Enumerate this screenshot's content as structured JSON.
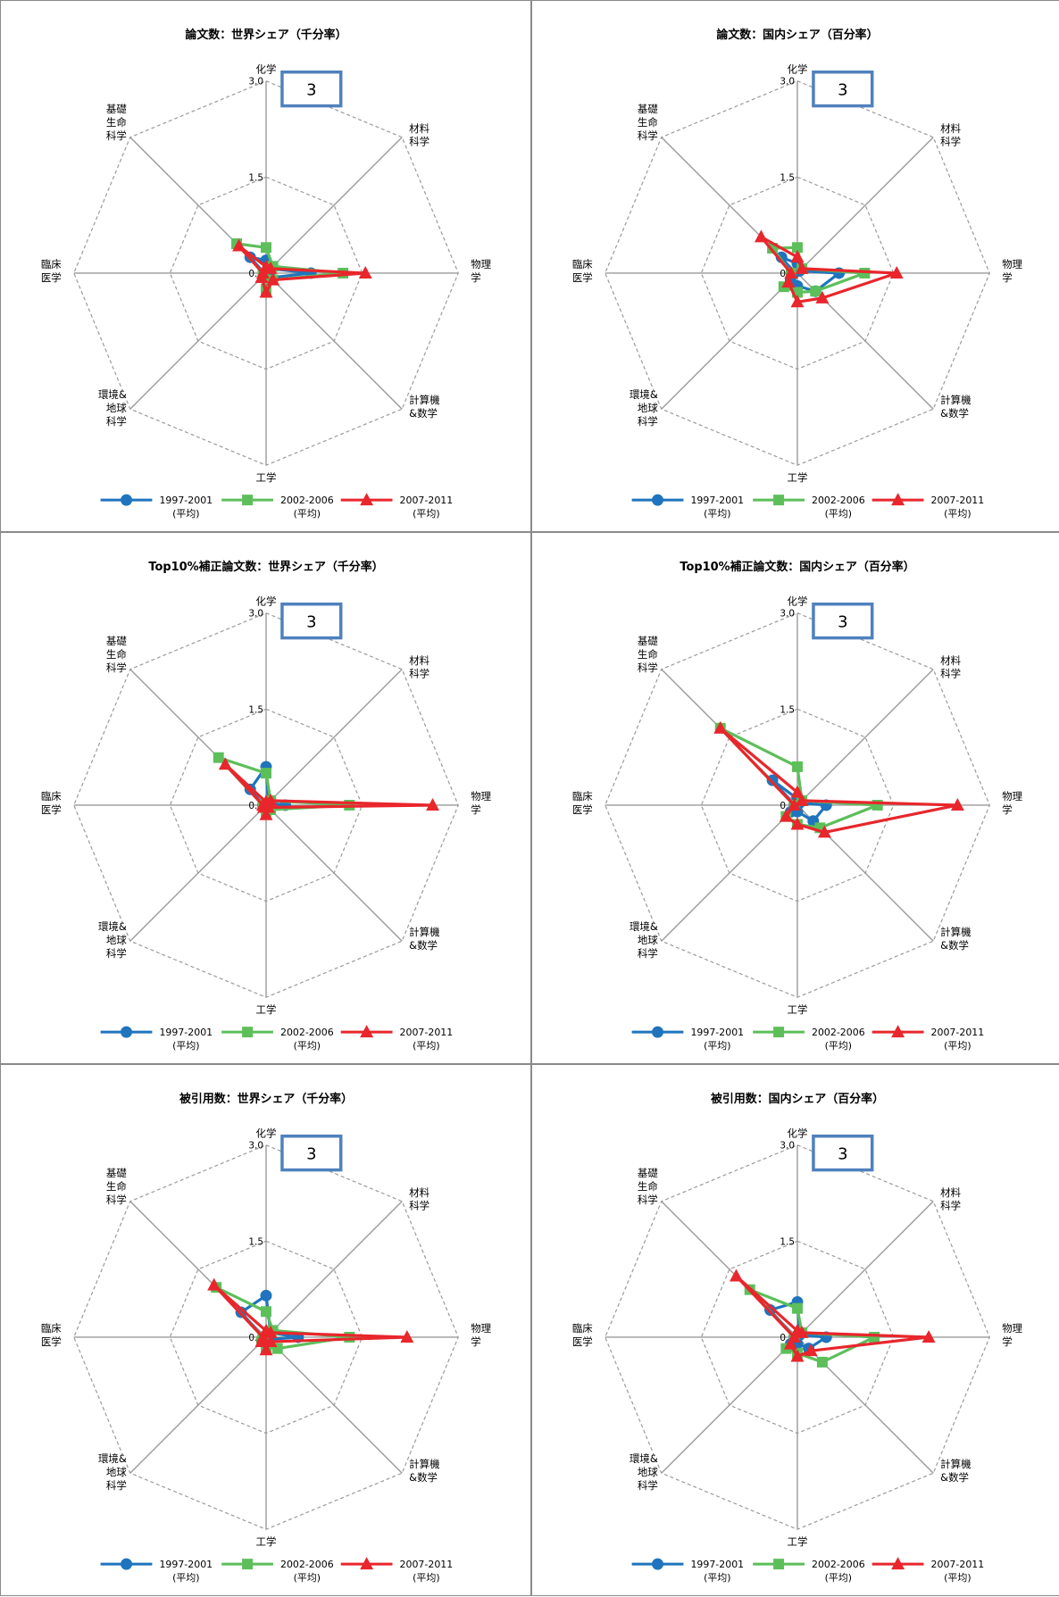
{
  "chart_data": [
    {
      "type": "radar",
      "title": "論文数：世界シェア（千分率）",
      "box_label": "3",
      "axes": [
        "化学",
        "材料\n科学",
        "物理\n学",
        "計算機\n&数学",
        "工学",
        "環境&\n地球\n科学",
        "臨床\n医学",
        "基礎\n生命\n科学"
      ],
      "rlim": [
        0,
        3
      ],
      "ticks": [
        "3.0",
        "1.5",
        "0.0"
      ],
      "series": [
        {
          "name": "1997-2001\n(平均)",
          "color": "#1f74bd",
          "marker": "circle",
          "values": [
            0.2,
            0.1,
            0.7,
            0.1,
            0.05,
            0.03,
            0.03,
            0.35
          ]
        },
        {
          "name": "2002-2006\n(平均)",
          "color": "#5cbf5a",
          "marker": "square",
          "values": [
            0.4,
            0.15,
            1.2,
            0.15,
            0.25,
            0.05,
            0.05,
            0.65
          ]
        },
        {
          "name": "2007-2011\n(平均)",
          "color": "#e8262c",
          "marker": "triangle",
          "values": [
            0.1,
            0.1,
            1.55,
            0.15,
            0.3,
            0.1,
            0.05,
            0.6
          ]
        }
      ]
    },
    {
      "type": "radar",
      "title": "論文数：国内シェア（百分率）",
      "box_label": "3",
      "axes": [
        "化学",
        "材料\n科学",
        "物理\n学",
        "計算機\n&数学",
        "工学",
        "環境&\n地球\n科学",
        "臨床\n医学",
        "基礎\n生命\n科学"
      ],
      "rlim": [
        0,
        3
      ],
      "ticks": [
        "3.0",
        "1.5",
        "0.0"
      ],
      "series": [
        {
          "name": "1997-2001\n(平均)",
          "color": "#1f74bd",
          "marker": "circle",
          "values": [
            0.15,
            0.05,
            0.65,
            0.4,
            0.2,
            0.15,
            0.05,
            0.35
          ]
        },
        {
          "name": "2002-2006\n(平均)",
          "color": "#5cbf5a",
          "marker": "square",
          "values": [
            0.4,
            0.1,
            1.05,
            0.4,
            0.3,
            0.3,
            0.1,
            0.55
          ]
        },
        {
          "name": "2007-2011\n(平均)",
          "color": "#e8262c",
          "marker": "triangle",
          "values": [
            0.25,
            0.1,
            1.55,
            0.55,
            0.45,
            0.2,
            0.1,
            0.8
          ]
        }
      ]
    },
    {
      "type": "radar",
      "title": "Top10%補正論文数：世界シェア（千分率）",
      "box_label": "3",
      "axes": [
        "化学",
        "材料\n科学",
        "物理\n学",
        "計算機\n&数学",
        "工学",
        "環境&\n地球\n科学",
        "臨床\n医学",
        "基礎\n生命\n科学"
      ],
      "rlim": [
        0,
        3
      ],
      "ticks": [
        "3.0",
        "1.5",
        "0.0"
      ],
      "series": [
        {
          "name": "1997-2001\n(平均)",
          "color": "#1f74bd",
          "marker": "circle",
          "values": [
            0.6,
            0.05,
            0.3,
            0.05,
            0.05,
            0.05,
            0.05,
            0.35
          ]
        },
        {
          "name": "2002-2006\n(平均)",
          "color": "#5cbf5a",
          "marker": "square",
          "values": [
            0.5,
            0.1,
            1.3,
            0.1,
            0.1,
            0.05,
            0.05,
            1.05
          ]
        },
        {
          "name": "2007-2011\n(平均)",
          "color": "#e8262c",
          "marker": "triangle",
          "values": [
            0.05,
            0.1,
            2.6,
            0.05,
            0.15,
            0.05,
            0.05,
            0.9
          ]
        }
      ]
    },
    {
      "type": "radar",
      "title": "Top10%補正論文数：国内シェア（百分率）",
      "box_label": "3",
      "axes": [
        "化学",
        "材料\n科学",
        "物理\n学",
        "計算機\n&数学",
        "工学",
        "環境&\n地球\n科学",
        "臨床\n医学",
        "基礎\n生命\n科学"
      ],
      "rlim": [
        0,
        3
      ],
      "ticks": [
        "3.0",
        "1.5",
        "0.0"
      ],
      "series": [
        {
          "name": "1997-2001\n(平均)",
          "color": "#1f74bd",
          "marker": "circle",
          "values": [
            0.1,
            0.05,
            0.45,
            0.35,
            0.1,
            0.15,
            0.05,
            0.55
          ]
        },
        {
          "name": "2002-2006\n(平均)",
          "color": "#5cbf5a",
          "marker": "square",
          "values": [
            0.6,
            0.1,
            1.25,
            0.5,
            0.3,
            0.25,
            0.05,
            1.7
          ]
        },
        {
          "name": "2007-2011\n(平均)",
          "color": "#e8262c",
          "marker": "triangle",
          "values": [
            0.2,
            0.1,
            2.5,
            0.6,
            0.3,
            0.25,
            0.05,
            1.7
          ]
        }
      ]
    },
    {
      "type": "radar",
      "title": "被引用数：世界シェア（千分率）",
      "box_label": "3",
      "axes": [
        "化学",
        "材料\n科学",
        "物理\n学",
        "計算機\n&数学",
        "工学",
        "環境&\n地球\n科学",
        "臨床\n医学",
        "基礎\n生命\n科学"
      ],
      "rlim": [
        0,
        3
      ],
      "ticks": [
        "3.0",
        "1.5",
        "0.0"
      ],
      "series": [
        {
          "name": "1997-2001\n(平均)",
          "color": "#1f74bd",
          "marker": "circle",
          "values": [
            0.65,
            0.1,
            0.5,
            0.05,
            0.05,
            0.05,
            0.05,
            0.55
          ]
        },
        {
          "name": "2002-2006\n(平均)",
          "color": "#5cbf5a",
          "marker": "square",
          "values": [
            0.4,
            0.15,
            1.3,
            0.25,
            0.15,
            0.1,
            0.05,
            1.1
          ]
        },
        {
          "name": "2007-2011\n(平均)",
          "color": "#e8262c",
          "marker": "triangle",
          "values": [
            0.1,
            0.1,
            2.2,
            0.1,
            0.2,
            0.1,
            0.05,
            1.15
          ]
        }
      ]
    },
    {
      "type": "radar",
      "title": "被引用数：国内シェア（百分率）",
      "box_label": "3",
      "axes": [
        "化学",
        "材料\n科学",
        "物理\n学",
        "計算機\n&数学",
        "工学",
        "環境&\n地球\n科学",
        "臨床\n医学",
        "基礎\n生命\n科学"
      ],
      "rlim": [
        0,
        3
      ],
      "ticks": [
        "3.0",
        "1.5",
        "0.0"
      ],
      "series": [
        {
          "name": "1997-2001\n(平均)",
          "color": "#1f74bd",
          "marker": "circle",
          "values": [
            0.55,
            0.05,
            0.45,
            0.25,
            0.1,
            0.15,
            0.05,
            0.6
          ]
        },
        {
          "name": "2002-2006\n(平均)",
          "color": "#5cbf5a",
          "marker": "square",
          "values": [
            0.45,
            0.1,
            1.2,
            0.55,
            0.25,
            0.25,
            0.05,
            1.05
          ]
        },
        {
          "name": "2007-2011\n(平均)",
          "color": "#e8262c",
          "marker": "triangle",
          "values": [
            0.1,
            0.1,
            2.05,
            0.3,
            0.3,
            0.15,
            0.05,
            1.35
          ]
        }
      ]
    }
  ]
}
